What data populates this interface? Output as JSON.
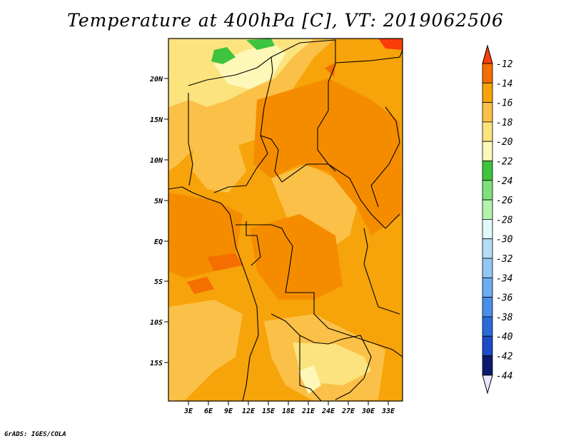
{
  "title": "Temperature at 400hPa [C], VT: 2019062506",
  "credit": "GrADS: IGES/COLA",
  "map": {
    "lat_labels": [
      "20N",
      "15N",
      "10N",
      "5N",
      "EQ",
      "5S",
      "10S",
      "15S"
    ],
    "lon_labels": [
      "3E",
      "6E",
      "9E",
      "12E",
      "15E",
      "18E",
      "21E",
      "24E",
      "27E",
      "30E",
      "33E"
    ],
    "ocean_color": "#f7a30a"
  },
  "colorbar": {
    "labels": [
      "-12",
      "-14",
      "-16",
      "-18",
      "-20",
      "-22",
      "-24",
      "-26",
      "-28",
      "-30",
      "-32",
      "-34",
      "-36",
      "-38",
      "-40",
      "-42",
      "-44"
    ],
    "colors": [
      "#fa3c0a",
      "#f56e00",
      "#f7a30a",
      "#fbc047",
      "#fbe37e",
      "#fdf8b7",
      "#3ec43e",
      "#7fe07a",
      "#b5f2ad",
      "#e0f8f8",
      "#b4dcf7",
      "#93c7f3",
      "#6aaef0",
      "#4a8fe8",
      "#2b6bd9",
      "#1b4bc7",
      "#0b1a6e",
      "#e8e8ff"
    ]
  }
}
